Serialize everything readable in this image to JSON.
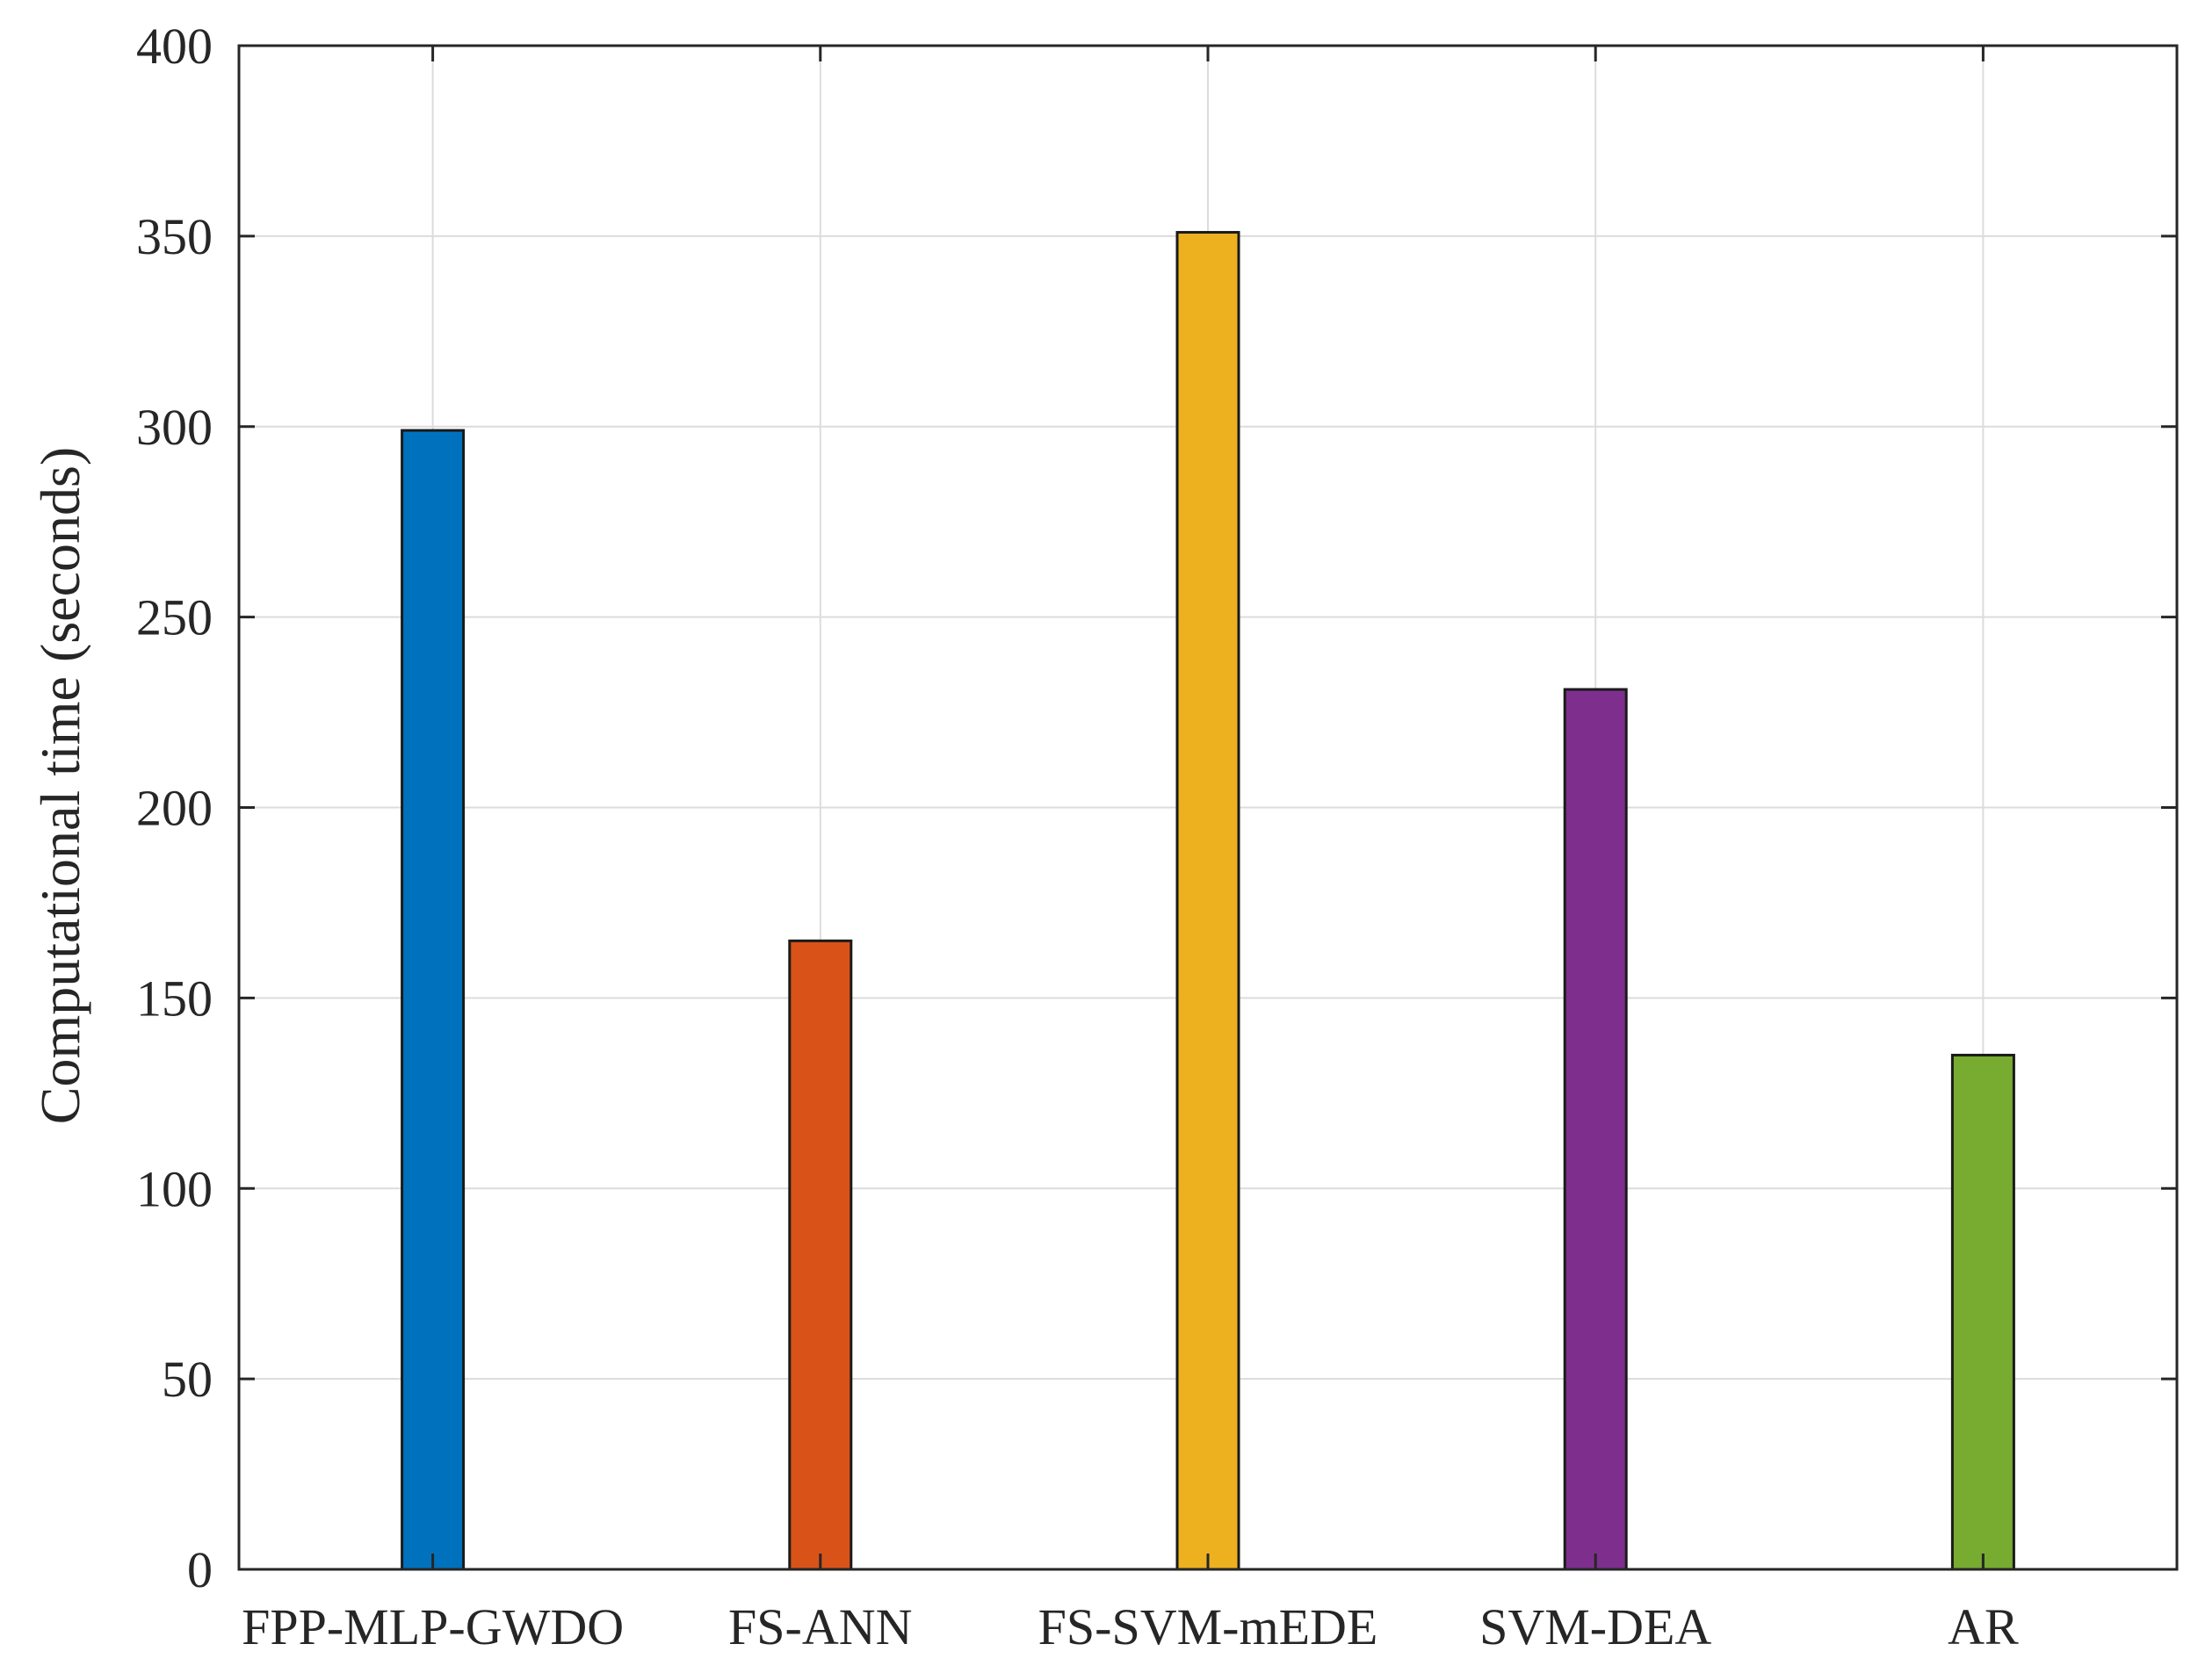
{
  "chart_data": {
    "type": "bar",
    "title": "",
    "xlabel": "",
    "ylabel": "Computational time (seconds)",
    "categories": [
      "FPP-MLP-GWDO",
      "FS-ANN",
      "FS-SVM-mEDE",
      "SVM-DEA",
      "AR"
    ],
    "values": [
      299,
      165,
      351,
      231,
      135
    ],
    "colors": [
      "#0072BD",
      "#D95319",
      "#EDB120",
      "#7E2F8E",
      "#77AC30"
    ],
    "ylim": [
      0,
      400
    ],
    "yticks": [
      0,
      50,
      100,
      150,
      200,
      250,
      300,
      350,
      400
    ],
    "grid": true,
    "legend": "none"
  }
}
